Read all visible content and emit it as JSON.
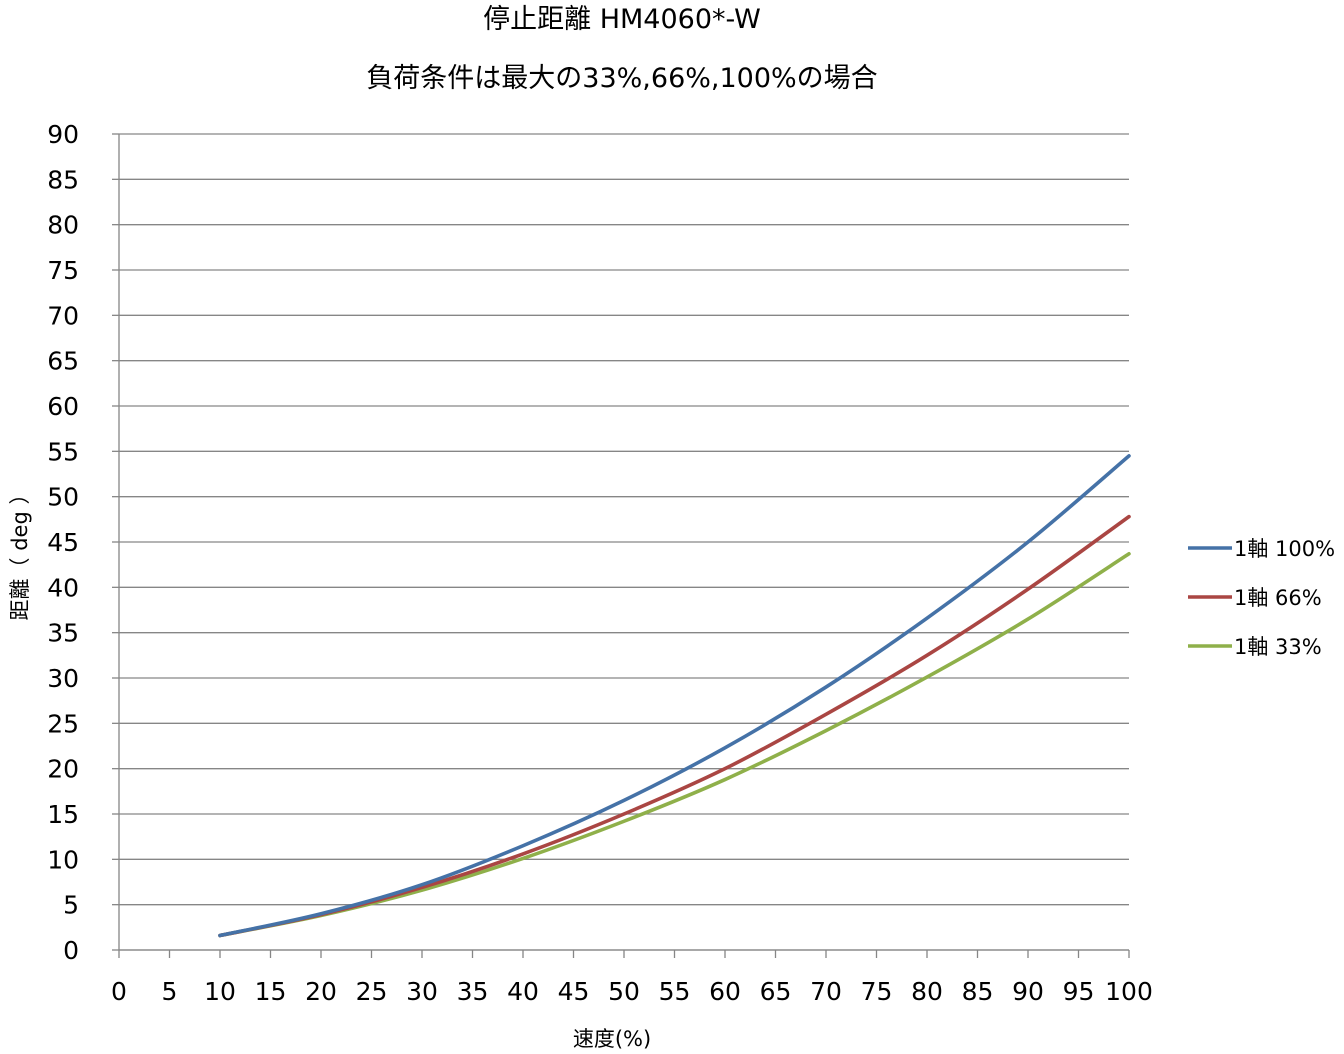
{
  "chart_data": {
    "type": "line",
    "title": "停止距離 HM4060*-W",
    "subtitle": "負荷条件は最大の33%,66%,100%の場合",
    "xlabel": "速度(%)",
    "ylabel": "距離（ deg ）",
    "xlim": [
      0,
      100
    ],
    "ylim": [
      0,
      90
    ],
    "x_ticks": [
      "0",
      "5",
      "10",
      "15",
      "20",
      "25",
      "30",
      "35",
      "40",
      "45",
      "50",
      "55",
      "60",
      "65",
      "70",
      "75",
      "80",
      "85",
      "90",
      "95",
      "100"
    ],
    "y_ticks": [
      "0",
      "5",
      "10",
      "15",
      "20",
      "25",
      "30",
      "35",
      "40",
      "45",
      "50",
      "55",
      "60",
      "65",
      "70",
      "75",
      "80",
      "85",
      "90"
    ],
    "grid": "horizontal",
    "legend_position": "right",
    "x": [
      10,
      20,
      30,
      40,
      50,
      60,
      70,
      80,
      90,
      100
    ],
    "series": [
      {
        "name": "1軸 100%",
        "color": "#4572A7",
        "values": [
          1.6,
          4.0,
          7.2,
          11.5,
          16.5,
          22.3,
          29.0,
          36.6,
          45.0,
          54.5
        ]
      },
      {
        "name": "1軸 66%",
        "color": "#AA4643",
        "values": [
          1.6,
          3.9,
          6.9,
          10.6,
          15.0,
          20.0,
          26.0,
          32.5,
          39.8,
          47.8
        ]
      },
      {
        "name": "1軸 33%",
        "color": "#8FB04A",
        "values": [
          1.6,
          3.8,
          6.6,
          10.1,
          14.2,
          18.8,
          24.2,
          30.1,
          36.5,
          43.7
        ]
      }
    ]
  }
}
